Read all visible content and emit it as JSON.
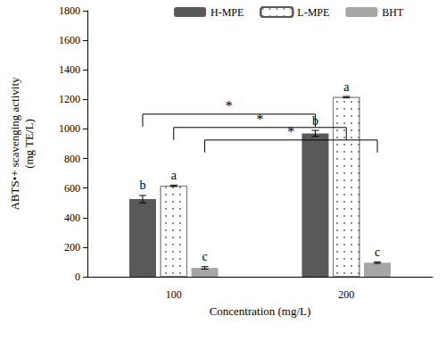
{
  "chart_data": {
    "type": "bar",
    "categories": [
      "100",
      "200"
    ],
    "x_label": "Concentration (mg/L)",
    "y_label": "ABTS•+ scavenging activity\n(mg TE/L)",
    "series": [
      {
        "name": "H-MPE",
        "color": "#595959",
        "values": [
          525,
          970
        ],
        "errors": [
          25,
          20
        ],
        "letters": [
          "b",
          "b"
        ]
      },
      {
        "name": "L-MPE",
        "color": "#595959",
        "marker": "dots",
        "values": [
          615,
          1215
        ],
        "errors": [
          5,
          5
        ],
        "letters": [
          "a",
          "a"
        ]
      },
      {
        "name": "BHT",
        "color": "#a6a6a6",
        "values": [
          60,
          95
        ],
        "errors": [
          8,
          5
        ],
        "letters": [
          "c",
          "c"
        ]
      }
    ],
    "significance": [
      {
        "series": "H-MPE",
        "label": "*",
        "y": 1100
      },
      {
        "series": "L-MPE",
        "label": "*",
        "y": 1010
      },
      {
        "series": "BHT",
        "label": "*",
        "y": 925
      }
    ],
    "ylim": [
      0,
      1800
    ],
    "yticks": [
      0,
      200,
      400,
      600,
      800,
      1000,
      1200,
      1400,
      1600,
      1800
    ],
    "grid": false,
    "legend": "top"
  }
}
